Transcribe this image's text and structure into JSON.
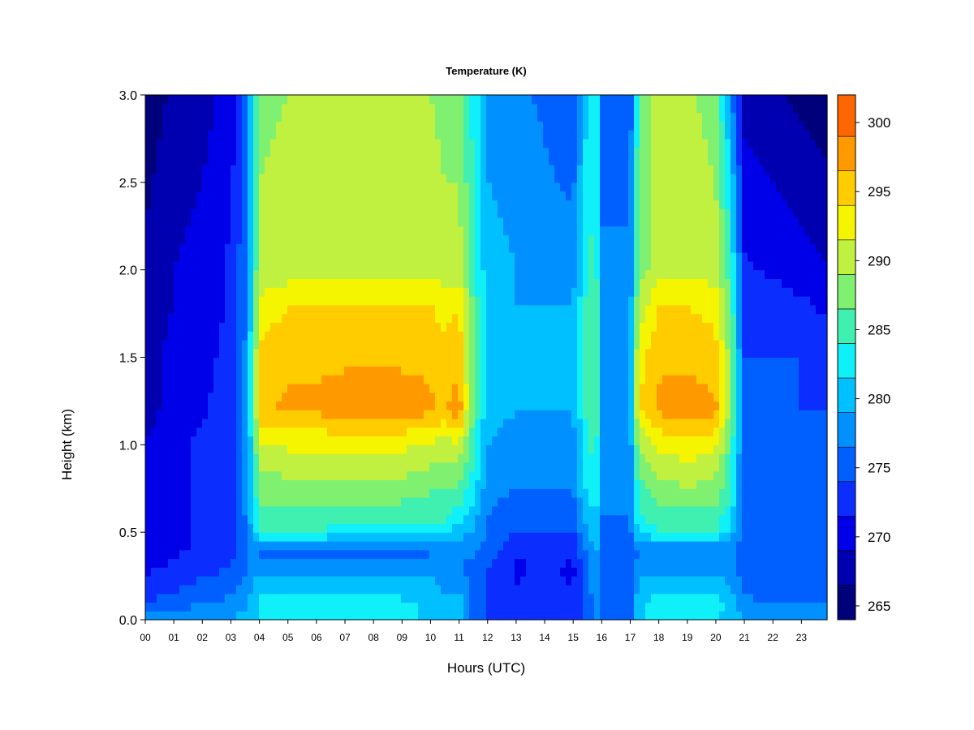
{
  "chart_data": {
    "type": "heatmap",
    "title": "Temperature (K)",
    "xlabel": "Hours (UTC)",
    "ylabel": "Height (km)",
    "xlim": [
      0,
      23.9
    ],
    "ylim": [
      0,
      3.0
    ],
    "x_ticks": [
      "00",
      "01",
      "02",
      "03",
      "04",
      "05",
      "06",
      "07",
      "08",
      "09",
      "10",
      "11",
      "12",
      "13",
      "14",
      "15",
      "16",
      "17",
      "18",
      "19",
      "20",
      "21",
      "22",
      "23"
    ],
    "y_ticks": [
      "0.0",
      "0.5",
      "1.0",
      "1.5",
      "2.0",
      "2.5",
      "3.0"
    ],
    "colorbar": {
      "range": [
        264,
        302
      ],
      "ticks": [
        "265",
        "270",
        "275",
        "280",
        "285",
        "290",
        "295",
        "300"
      ],
      "levels": [
        264,
        266.5,
        269,
        271.5,
        274,
        276.5,
        279,
        281.5,
        284,
        286.5,
        289,
        291.5,
        294,
        296.5,
        299,
        302
      ],
      "colors": [
        "#00007a",
        "#0000b0",
        "#0000e8",
        "#0b2eff",
        "#0060ff",
        "#0090ff",
        "#00c0ff",
        "#10f0f8",
        "#40f0b0",
        "#80f070",
        "#c0f040",
        "#f5f500",
        "#ffcc00",
        "#ff9900",
        "#ff6600",
        "#ff3300",
        "#ee0000",
        "#b80000",
        "#7a0000"
      ]
    },
    "grid": false,
    "legend": "colorbar-right",
    "temperature_field": {
      "hours": [
        0,
        1,
        2,
        3,
        3.5,
        3.8,
        4,
        5,
        6,
        7,
        8,
        9,
        10,
        10.5,
        11,
        11.5,
        12,
        13,
        14,
        15,
        15.5,
        15.8,
        16,
        17,
        17.3,
        18,
        19,
        20,
        20.5,
        21,
        22,
        23,
        23.9
      ],
      "heights_km": [
        0.0,
        0.1,
        0.3,
        0.4,
        0.5,
        0.7,
        1.0,
        1.2,
        1.5,
        1.8,
        2.0,
        2.5,
        3.0
      ],
      "values_K": [
        [
          279,
          274,
          271,
          270,
          270,
          270,
          269,
          268,
          268,
          267,
          267,
          266,
          265
        ],
        [
          279,
          275,
          272,
          271,
          271,
          271,
          271,
          270,
          270,
          269,
          269,
          268,
          267
        ],
        [
          279,
          276,
          273,
          272,
          272,
          272,
          272,
          271,
          271,
          270,
          270,
          269,
          268
        ],
        [
          279,
          277,
          274,
          273,
          273,
          273,
          273,
          273,
          272,
          272,
          272,
          271,
          270
        ],
        [
          280,
          278,
          276,
          276,
          276,
          277,
          277,
          277,
          277,
          276,
          276,
          275,
          275
        ],
        [
          281,
          280,
          279,
          279,
          280,
          282,
          284,
          285,
          285,
          284,
          284,
          283,
          282
        ],
        [
          282,
          282,
          278,
          276,
          284,
          287,
          291,
          296,
          295,
          292,
          290,
          289,
          288
        ],
        [
          282,
          282,
          278,
          275,
          284,
          287,
          292,
          297,
          296,
          294,
          290,
          290,
          289
        ],
        [
          282,
          282,
          278,
          275,
          284,
          287,
          292,
          297,
          296,
          294,
          291,
          290,
          290
        ],
        [
          282,
          282,
          278,
          275,
          283,
          287,
          292,
          298,
          296,
          294,
          291,
          291,
          290
        ],
        [
          282,
          282,
          278,
          275,
          283,
          287,
          292,
          298,
          296,
          294,
          291,
          291,
          290
        ],
        [
          282,
          282,
          278,
          275,
          283,
          287,
          292,
          298,
          296,
          294,
          291,
          291,
          290
        ],
        [
          281,
          281,
          278,
          276,
          283,
          286,
          291,
          297,
          296,
          294,
          291,
          290,
          289
        ],
        [
          279,
          279,
          278,
          277,
          283,
          286,
          290,
          296,
          295,
          293,
          290,
          289,
          288
        ],
        [
          280,
          280,
          277,
          278,
          280,
          285,
          291,
          298,
          296,
          294,
          290,
          289,
          288
        ],
        [
          276,
          276,
          275,
          277,
          279,
          282,
          285,
          286,
          286,
          286,
          285,
          284,
          283
        ],
        [
          274,
          274,
          274,
          275,
          276,
          277,
          279,
          280,
          280,
          280,
          280,
          279,
          278
        ],
        [
          273,
          272,
          271,
          272,
          274,
          276,
          278,
          279,
          279,
          279,
          279,
          278,
          277
        ],
        [
          273,
          272,
          272,
          273,
          274,
          276,
          278,
          279,
          279,
          279,
          278,
          277,
          276
        ],
        [
          273,
          272,
          271,
          272,
          274,
          276,
          278,
          279,
          279,
          279,
          278,
          276,
          274
        ],
        [
          275,
          275,
          276,
          277,
          279,
          282,
          284,
          285,
          285,
          285,
          284,
          283,
          282
        ],
        [
          278,
          278,
          279,
          280,
          281,
          283,
          285,
          286,
          286,
          286,
          285,
          284,
          283
        ],
        [
          274,
          274,
          274,
          275,
          276,
          277,
          278,
          278,
          278,
          278,
          277,
          276,
          275
        ],
        [
          274,
          274,
          274,
          275,
          276,
          277,
          278,
          278,
          278,
          278,
          277,
          276,
          275
        ],
        [
          281,
          281,
          278,
          276,
          282,
          285,
          289,
          294,
          293,
          290,
          288,
          287,
          286
        ],
        [
          282,
          283,
          278,
          276,
          284,
          287,
          292,
          297,
          296,
          294,
          290,
          290,
          290
        ],
        [
          282,
          283,
          278,
          276,
          284,
          288,
          293,
          298,
          296,
          294,
          291,
          291,
          290
        ],
        [
          282,
          283,
          278,
          276,
          284,
          287,
          292,
          297,
          295,
          293,
          290,
          289,
          287
        ],
        [
          280,
          280,
          278,
          277,
          281,
          284,
          286,
          288,
          288,
          287,
          285,
          282,
          278
        ],
        [
          279,
          277,
          275,
          275,
          275,
          275,
          275,
          275,
          274,
          273,
          272,
          270,
          268
        ],
        [
          279,
          276,
          275,
          275,
          275,
          275,
          275,
          275,
          274,
          273,
          271,
          269,
          267
        ],
        [
          279,
          276,
          275,
          275,
          275,
          275,
          275,
          274,
          274,
          272,
          270,
          268,
          266
        ],
        [
          278,
          276,
          275,
          275,
          275,
          275,
          275,
          274,
          273,
          271,
          269,
          267,
          265
        ]
      ]
    }
  }
}
